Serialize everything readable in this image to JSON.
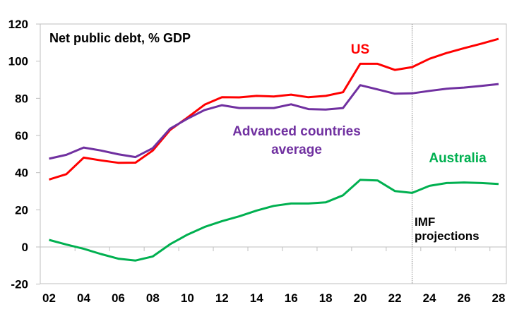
{
  "chart_data": {
    "type": "line",
    "title": "Net public debt, % GDP",
    "xlabel": "",
    "ylabel": "",
    "ylim": [
      -20,
      120
    ],
    "yticks": [
      -20,
      0,
      20,
      40,
      60,
      80,
      100,
      120
    ],
    "xlim": [
      2002,
      2028
    ],
    "xtick_labels": [
      "02",
      "04",
      "06",
      "08",
      "10",
      "12",
      "14",
      "16",
      "18",
      "20",
      "22",
      "24",
      "26",
      "28"
    ],
    "xtick_years": [
      2002,
      2004,
      2006,
      2008,
      2010,
      2012,
      2014,
      2016,
      2018,
      2020,
      2022,
      2024,
      2026,
      2028
    ],
    "grid": false,
    "x": [
      2002,
      2003,
      2004,
      2005,
      2006,
      2007,
      2008,
      2009,
      2010,
      2011,
      2012,
      2013,
      2014,
      2015,
      2016,
      2017,
      2018,
      2019,
      2020,
      2021,
      2022,
      2023,
      2024,
      2025,
      2026,
      2027,
      2028
    ],
    "series": [
      {
        "name": "US",
        "color": "#ff0000",
        "values": [
          36.3,
          39.2,
          48.1,
          46.6,
          45.3,
          45.4,
          51.9,
          63,
          69.6,
          76.6,
          80.6,
          80.5,
          81.3,
          81,
          82,
          80.6,
          81.3,
          83.3,
          98.6,
          98.6,
          95.3,
          96.8,
          101.3,
          104.4,
          107,
          109.4,
          112
        ]
      },
      {
        "name": "Advanced countries average",
        "color": "#7030a0",
        "values": [
          47.5,
          49.6,
          53.5,
          51.9,
          49.9,
          48.4,
          53.2,
          63.7,
          69,
          73.7,
          76.3,
          74.8,
          74.8,
          74.8,
          76.8,
          74.2,
          74,
          74.8,
          87.1,
          84.8,
          82.5,
          82.7,
          84,
          85.2,
          85.8,
          86.7,
          87.7
        ]
      },
      {
        "name": "Australia",
        "color": "#00b050",
        "values": [
          3.8,
          1.3,
          -1,
          -3.8,
          -6.3,
          -7.3,
          -5.1,
          1.5,
          6.6,
          10.8,
          13.9,
          16.5,
          19.6,
          22.1,
          23.4,
          23.4,
          24,
          27.8,
          36.1,
          35.8,
          30.1,
          29.1,
          32.9,
          34.4,
          34.7,
          34.4,
          33.9
        ]
      }
    ],
    "series_labels": {
      "us": "US",
      "adv_line1": "Advanced countries",
      "adv_line2": "average",
      "aus": "Australia"
    },
    "annotation": {
      "line1": "IMF",
      "line2": "projections",
      "year": 2023
    }
  }
}
